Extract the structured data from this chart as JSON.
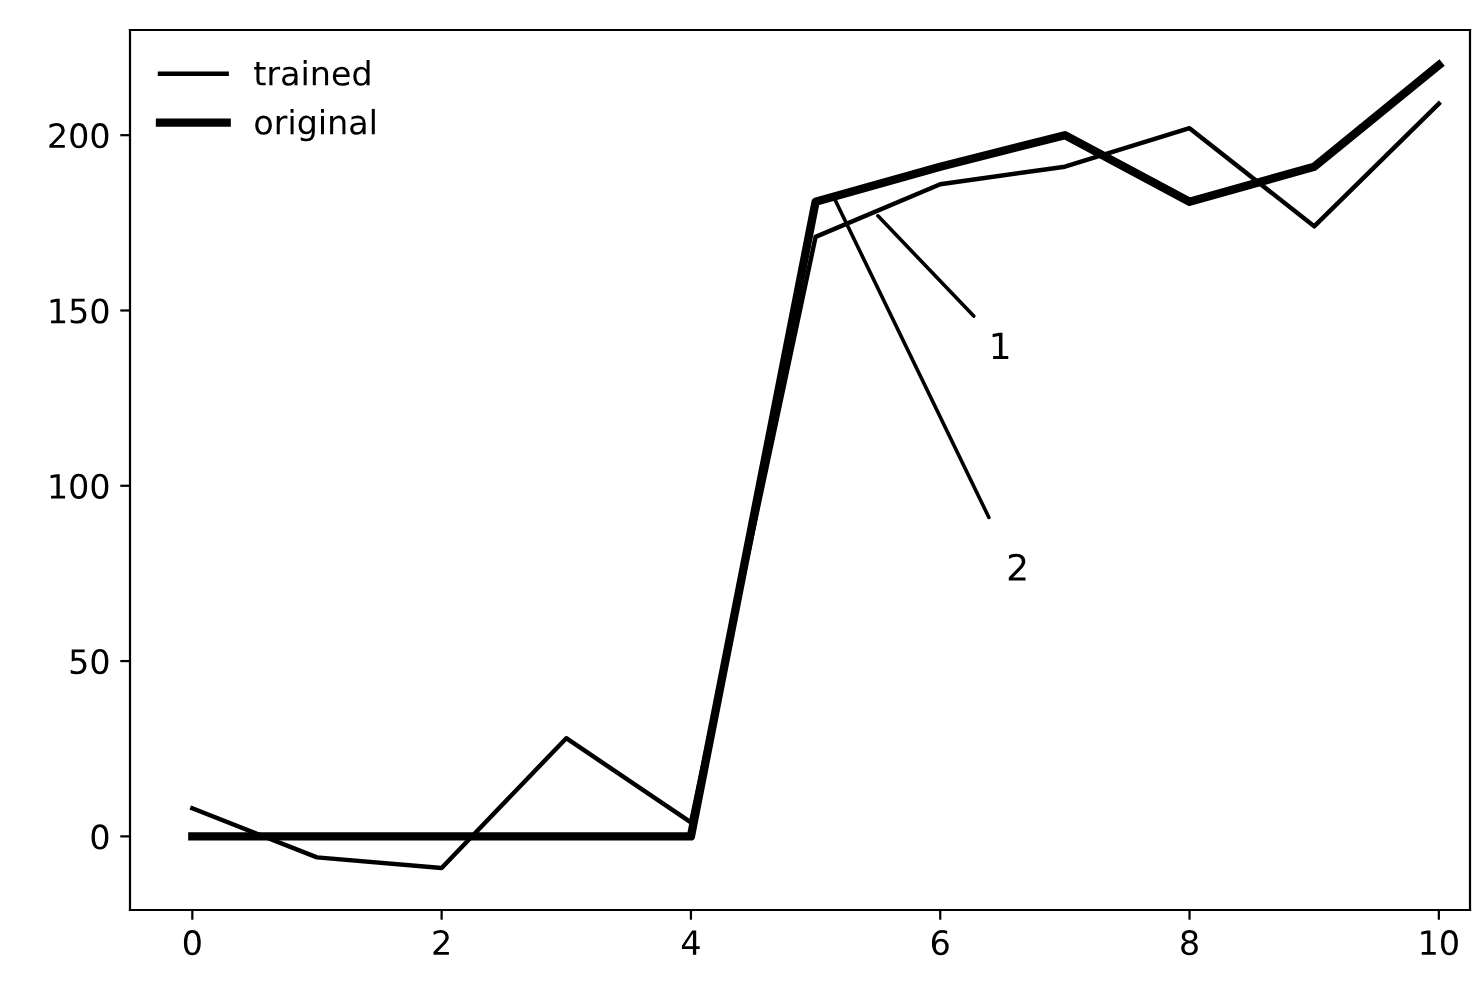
{
  "chart_data": {
    "type": "line",
    "x": [
      0,
      1,
      2,
      3,
      4,
      5,
      6,
      7,
      8,
      9,
      10
    ],
    "series": [
      {
        "name": "trained",
        "color": "#000000",
        "values": [
          8,
          -6,
          -9,
          28,
          4,
          171,
          186,
          191,
          202,
          174,
          209
        ]
      },
      {
        "name": "original",
        "color": "#000000",
        "values": [
          0,
          0,
          0,
          0,
          0,
          181,
          191,
          200,
          181,
          191,
          220
        ]
      }
    ],
    "xlim": [
      -0.5,
      10.25
    ],
    "ylim": [
      -21,
      230
    ],
    "xticks": [
      0,
      2,
      4,
      6,
      8,
      10
    ],
    "yticks": [
      0,
      50,
      100,
      150,
      200
    ],
    "annotations": [
      {
        "text": "1",
        "x": 5.5,
        "y": 177
      },
      {
        "text": "2",
        "x": 5.15,
        "y": 182
      }
    ],
    "legend": "top left",
    "grid": false,
    "marker": "none",
    "line_style": "solid"
  }
}
